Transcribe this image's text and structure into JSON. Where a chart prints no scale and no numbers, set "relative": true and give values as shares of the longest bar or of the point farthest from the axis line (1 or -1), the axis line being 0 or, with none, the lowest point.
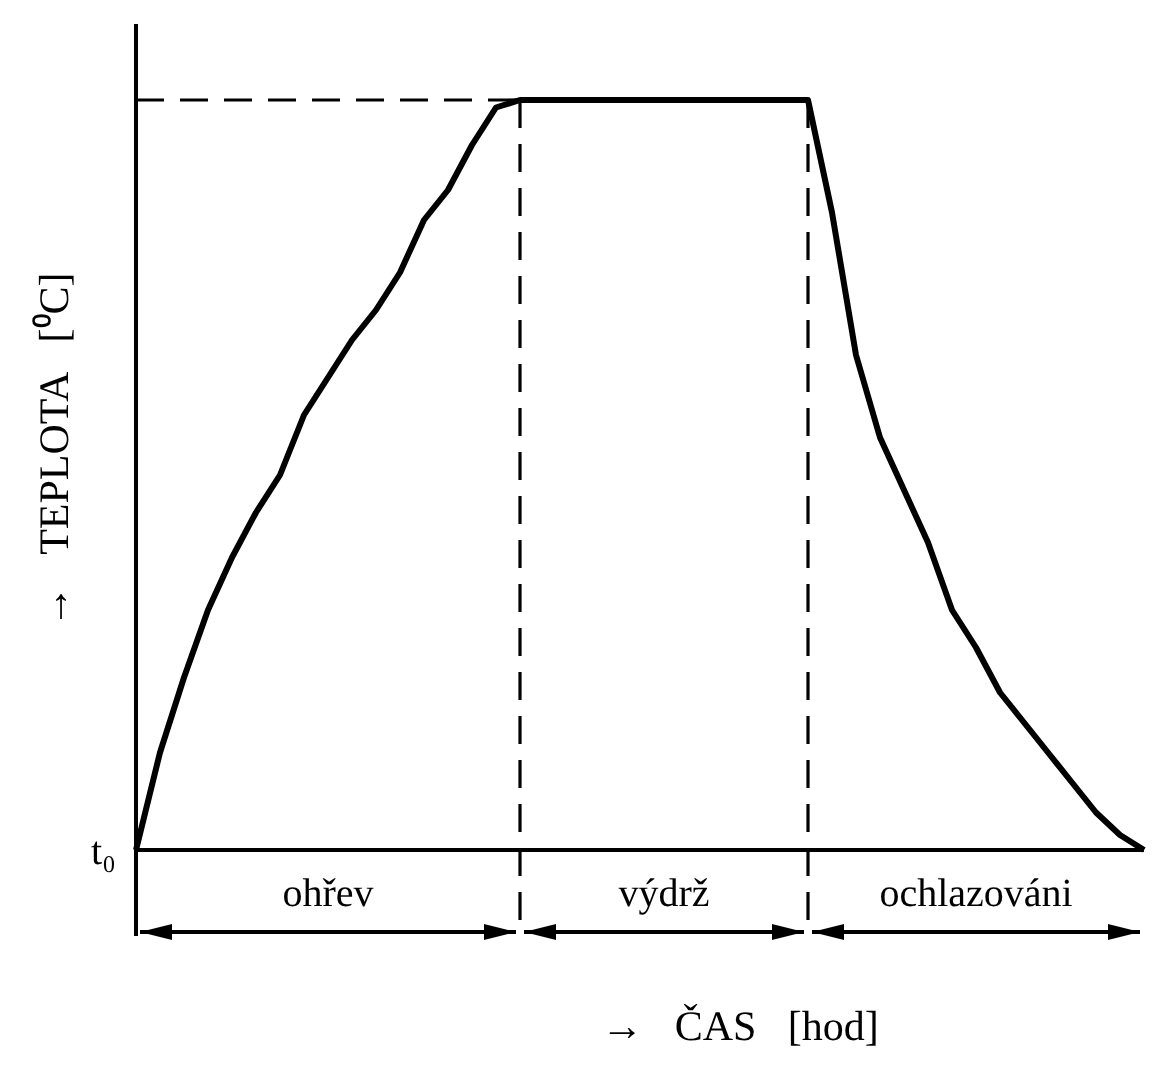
{
  "chart_data": {
    "type": "line",
    "relative": true,
    "xlabel": "→   ČAS   [hod]",
    "ylabel": "→   TEPLOTA   [⁰C]",
    "categories": [
      null,
      null,
      null,
      null,
      null,
      null,
      null,
      null,
      null,
      null,
      null,
      null,
      null,
      null,
      null,
      null,
      null,
      null,
      null,
      null,
      null,
      null,
      null,
      null,
      null,
      null,
      null,
      null,
      null,
      null,
      null,
      null,
      null,
      null,
      null,
      null,
      null,
      null,
      null,
      null,
      null,
      null,
      null
    ],
    "marker": "none",
    "line_style": "solid",
    "series": [
      {
        "color": "#000000",
        "values": [
          0,
          0.13,
          0.23,
          0.32,
          0.39,
          0.45,
          0.5,
          0.58,
          0.63,
          0.68,
          0.72,
          0.77,
          0.84,
          0.88,
          0.94,
          0.99,
          1,
          1,
          1,
          1,
          1,
          1,
          1,
          1,
          1,
          1,
          1,
          1,
          1,
          0.85,
          0.66,
          0.55,
          0.48,
          0.41,
          0.32,
          0.27,
          0.21,
          0.17,
          0.13,
          0.09,
          0.05,
          0.02,
          0
        ]
      }
    ],
    "annotations": [
      "t₀",
      "ohřev",
      "výdrž",
      "ochlazováni"
    ]
  }
}
